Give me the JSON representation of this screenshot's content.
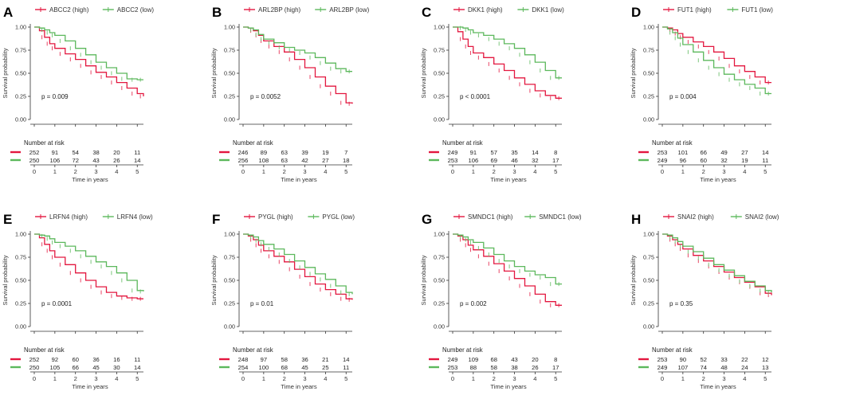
{
  "colors": {
    "high": "#e3173f",
    "low": "#5cb85c",
    "axis": "#333333"
  },
  "shared": {
    "ylabel": "Survival probability",
    "xlabel": "Time in years",
    "risk_title": "Number at risk",
    "yticks": [
      "0.00",
      "0.25",
      "0.50",
      "0.75",
      "1.00"
    ],
    "xticks": [
      "0",
      "1",
      "2",
      "3",
      "4",
      "5"
    ]
  },
  "chart_data": [
    {
      "panel": "A",
      "type": "line",
      "title": "",
      "xlabel": "Time in years",
      "ylabel": "Survival probability",
      "xlim": [
        0,
        5.3
      ],
      "ylim": [
        0,
        1
      ],
      "legend": [
        "ABCC2 (high)",
        "ABCC2 (low)"
      ],
      "pvalue": "p = 0.009",
      "series": [
        {
          "name": "ABCC2 (high)",
          "x": [
            0,
            0.25,
            0.5,
            0.75,
            1,
            1.5,
            2,
            2.5,
            3,
            3.5,
            4,
            4.5,
            5,
            5.3
          ],
          "y": [
            1.0,
            0.96,
            0.89,
            0.82,
            0.77,
            0.71,
            0.65,
            0.58,
            0.51,
            0.46,
            0.4,
            0.34,
            0.28,
            0.25
          ]
        },
        {
          "name": "ABCC2 (low)",
          "x": [
            0,
            0.25,
            0.5,
            0.75,
            1,
            1.5,
            2,
            2.5,
            3,
            3.5,
            4,
            4.5,
            5,
            5.3
          ],
          "y": [
            1.0,
            0.99,
            0.97,
            0.94,
            0.91,
            0.85,
            0.77,
            0.7,
            0.62,
            0.56,
            0.5,
            0.44,
            0.43,
            0.43
          ]
        }
      ],
      "risk": {
        "high": [
          "252",
          "91",
          "54",
          "38",
          "20",
          "11"
        ],
        "low": [
          "250",
          "106",
          "72",
          "43",
          "26",
          "14"
        ]
      }
    },
    {
      "panel": "B",
      "type": "line",
      "title": "",
      "xlabel": "Time in years",
      "ylabel": "Survival probability",
      "xlim": [
        0,
        5.3
      ],
      "ylim": [
        0,
        1
      ],
      "legend": [
        "ARL2BP (high)",
        "ARL2BP (low)"
      ],
      "pvalue": "p = 0.0052",
      "series": [
        {
          "name": "ARL2BP (high)",
          "x": [
            0,
            0.25,
            0.5,
            0.75,
            1,
            1.5,
            2,
            2.5,
            3,
            3.5,
            4,
            4.5,
            5,
            5.3
          ],
          "y": [
            1.0,
            0.99,
            0.96,
            0.91,
            0.85,
            0.79,
            0.73,
            0.65,
            0.56,
            0.46,
            0.36,
            0.28,
            0.18,
            0.17
          ]
        },
        {
          "name": "ARL2BP (low)",
          "x": [
            0,
            0.25,
            0.5,
            0.75,
            1,
            1.5,
            2,
            2.5,
            3,
            3.5,
            4,
            4.5,
            5,
            5.3
          ],
          "y": [
            1.0,
            0.99,
            0.97,
            0.92,
            0.87,
            0.83,
            0.78,
            0.75,
            0.72,
            0.67,
            0.61,
            0.55,
            0.52,
            0.52
          ]
        }
      ],
      "risk": {
        "high": [
          "246",
          "89",
          "63",
          "39",
          "19",
          "7"
        ],
        "low": [
          "256",
          "108",
          "63",
          "42",
          "27",
          "18"
        ]
      }
    },
    {
      "panel": "C",
      "type": "line",
      "title": "",
      "xlabel": "Time in years",
      "ylabel": "Survival probability",
      "xlim": [
        0,
        5.3
      ],
      "ylim": [
        0,
        1
      ],
      "legend": [
        "DKK1 (high)",
        "DKK1 (low)"
      ],
      "pvalue": "p < 0.0001",
      "series": [
        {
          "name": "DKK1 (high)",
          "x": [
            0,
            0.25,
            0.5,
            0.75,
            1,
            1.5,
            2,
            2.5,
            3,
            3.5,
            4,
            4.5,
            5,
            5.3
          ],
          "y": [
            1.0,
            0.95,
            0.87,
            0.79,
            0.72,
            0.67,
            0.6,
            0.53,
            0.45,
            0.38,
            0.31,
            0.26,
            0.23,
            0.23
          ]
        },
        {
          "name": "DKK1 (low)",
          "x": [
            0,
            0.25,
            0.5,
            0.75,
            1,
            1.5,
            2,
            2.5,
            3,
            3.5,
            4,
            4.5,
            5,
            5.3
          ],
          "y": [
            1.0,
            1.0,
            0.99,
            0.97,
            0.94,
            0.91,
            0.87,
            0.82,
            0.77,
            0.7,
            0.62,
            0.53,
            0.45,
            0.45
          ]
        }
      ],
      "risk": {
        "high": [
          "249",
          "91",
          "57",
          "35",
          "14",
          "8"
        ],
        "low": [
          "253",
          "106",
          "69",
          "46",
          "32",
          "17"
        ]
      }
    },
    {
      "panel": "D",
      "type": "line",
      "title": "",
      "xlabel": "Time in years",
      "ylabel": "Survival probability",
      "xlim": [
        0,
        5.3
      ],
      "ylim": [
        0,
        1
      ],
      "legend": [
        "FUT1 (high)",
        "FUT1 (low)"
      ],
      "pvalue": "p = 0.004",
      "series": [
        {
          "name": "FUT1 (high)",
          "x": [
            0,
            0.25,
            0.5,
            0.75,
            1,
            1.5,
            2,
            2.5,
            3,
            3.5,
            4,
            4.5,
            5,
            5.3
          ],
          "y": [
            1.0,
            0.99,
            0.97,
            0.93,
            0.89,
            0.84,
            0.79,
            0.73,
            0.66,
            0.58,
            0.52,
            0.46,
            0.4,
            0.4
          ]
        },
        {
          "name": "FUT1 (low)",
          "x": [
            0,
            0.25,
            0.5,
            0.75,
            1,
            1.5,
            2,
            2.5,
            3,
            3.5,
            4,
            4.5,
            5,
            5.3
          ],
          "y": [
            1.0,
            0.98,
            0.94,
            0.88,
            0.81,
            0.73,
            0.64,
            0.56,
            0.49,
            0.43,
            0.38,
            0.34,
            0.28,
            0.28
          ]
        }
      ],
      "risk": {
        "high": [
          "253",
          "101",
          "66",
          "49",
          "27",
          "14"
        ],
        "low": [
          "249",
          "96",
          "60",
          "32",
          "19",
          "11"
        ]
      }
    },
    {
      "panel": "E",
      "type": "line",
      "title": "",
      "xlabel": "Time in years",
      "ylabel": "Survival probability",
      "xlim": [
        0,
        5.3
      ],
      "ylim": [
        0,
        1
      ],
      "legend": [
        "LRFN4 (high)",
        "LRFN4 (low)"
      ],
      "pvalue": "p = 0.0001",
      "series": [
        {
          "name": "LRFN4 (high)",
          "x": [
            0,
            0.25,
            0.5,
            0.75,
            1,
            1.5,
            2,
            2.5,
            3,
            3.5,
            4,
            4.5,
            5,
            5.3
          ],
          "y": [
            1.0,
            0.96,
            0.89,
            0.82,
            0.75,
            0.67,
            0.58,
            0.5,
            0.43,
            0.37,
            0.33,
            0.31,
            0.3,
            0.3
          ]
        },
        {
          "name": "LRFN4 (low)",
          "x": [
            0,
            0.25,
            0.5,
            0.75,
            1,
            1.5,
            2,
            2.5,
            3,
            3.5,
            4,
            4.5,
            5,
            5.3
          ],
          "y": [
            1.0,
            0.99,
            0.98,
            0.95,
            0.91,
            0.87,
            0.82,
            0.76,
            0.7,
            0.65,
            0.58,
            0.5,
            0.39,
            0.38
          ]
        }
      ],
      "risk": {
        "high": [
          "252",
          "92",
          "60",
          "36",
          "16",
          "11"
        ],
        "low": [
          "250",
          "105",
          "66",
          "45",
          "30",
          "14"
        ]
      }
    },
    {
      "panel": "F",
      "type": "line",
      "title": "",
      "xlabel": "Time in years",
      "ylabel": "Survival probability",
      "xlim": [
        0,
        5.3
      ],
      "ylim": [
        0,
        1
      ],
      "legend": [
        "PYGL (high)",
        "PYGL (low)"
      ],
      "pvalue": "p = 0.01",
      "series": [
        {
          "name": "PYGL (high)",
          "x": [
            0,
            0.25,
            0.5,
            0.75,
            1,
            1.5,
            2,
            2.5,
            3,
            3.5,
            4,
            4.5,
            5,
            5.3
          ],
          "y": [
            1.0,
            0.98,
            0.94,
            0.88,
            0.82,
            0.76,
            0.7,
            0.62,
            0.54,
            0.46,
            0.4,
            0.35,
            0.3,
            0.29
          ]
        },
        {
          "name": "PYGL (low)",
          "x": [
            0,
            0.25,
            0.5,
            0.75,
            1,
            1.5,
            2,
            2.5,
            3,
            3.5,
            4,
            4.5,
            5,
            5.3
          ],
          "y": [
            1.0,
            0.99,
            0.97,
            0.93,
            0.89,
            0.84,
            0.78,
            0.71,
            0.64,
            0.57,
            0.51,
            0.44,
            0.37,
            0.35
          ]
        }
      ],
      "risk": {
        "high": [
          "248",
          "97",
          "58",
          "36",
          "21",
          "14"
        ],
        "low": [
          "254",
          "100",
          "68",
          "45",
          "25",
          "11"
        ]
      }
    },
    {
      "panel": "G",
      "type": "line",
      "title": "",
      "xlabel": "Time in years",
      "ylabel": "Survival probability",
      "xlim": [
        0,
        5.3
      ],
      "ylim": [
        0,
        1
      ],
      "legend": [
        "SMNDC1 (high)",
        "SMNDC1 (low)"
      ],
      "pvalue": "p = 0.002",
      "series": [
        {
          "name": "SMNDC1 (high)",
          "x": [
            0,
            0.25,
            0.5,
            0.75,
            1,
            1.5,
            2,
            2.5,
            3,
            3.5,
            4,
            4.5,
            5,
            5.3
          ],
          "y": [
            1.0,
            0.98,
            0.94,
            0.88,
            0.83,
            0.76,
            0.68,
            0.6,
            0.52,
            0.44,
            0.35,
            0.27,
            0.23,
            0.23
          ]
        },
        {
          "name": "SMNDC1 (low)",
          "x": [
            0,
            0.25,
            0.5,
            0.75,
            1,
            1.5,
            2,
            2.5,
            3,
            3.5,
            4,
            4.5,
            5,
            5.3
          ],
          "y": [
            1.0,
            0.99,
            0.97,
            0.94,
            0.91,
            0.85,
            0.78,
            0.71,
            0.65,
            0.6,
            0.56,
            0.53,
            0.46,
            0.46
          ]
        }
      ],
      "risk": {
        "high": [
          "249",
          "109",
          "68",
          "43",
          "20",
          "8"
        ],
        "low": [
          "253",
          "88",
          "58",
          "38",
          "26",
          "17"
        ]
      }
    },
    {
      "panel": "H",
      "type": "line",
      "title": "",
      "xlabel": "Time in years",
      "ylabel": "Survival probability",
      "xlim": [
        0,
        5.3
      ],
      "ylim": [
        0,
        1
      ],
      "legend": [
        "SNAI2 (high)",
        "SNAI2 (low)"
      ],
      "pvalue": "p = 0.35",
      "series": [
        {
          "name": "SNAI2 (high)",
          "x": [
            0,
            0.25,
            0.5,
            0.75,
            1,
            1.5,
            2,
            2.5,
            3,
            3.5,
            4,
            4.5,
            5,
            5.3
          ],
          "y": [
            1.0,
            0.98,
            0.94,
            0.89,
            0.84,
            0.77,
            0.71,
            0.65,
            0.59,
            0.53,
            0.48,
            0.43,
            0.36,
            0.34
          ]
        },
        {
          "name": "SNAI2 (low)",
          "x": [
            0,
            0.25,
            0.5,
            0.75,
            1,
            1.5,
            2,
            2.5,
            3,
            3.5,
            4,
            4.5,
            5,
            5.3
          ],
          "y": [
            1.0,
            0.99,
            0.96,
            0.92,
            0.87,
            0.81,
            0.74,
            0.67,
            0.61,
            0.55,
            0.49,
            0.44,
            0.39,
            0.37
          ]
        }
      ],
      "risk": {
        "high": [
          "253",
          "90",
          "52",
          "33",
          "22",
          "12"
        ],
        "low": [
          "249",
          "107",
          "74",
          "48",
          "24",
          "13"
        ]
      }
    }
  ]
}
